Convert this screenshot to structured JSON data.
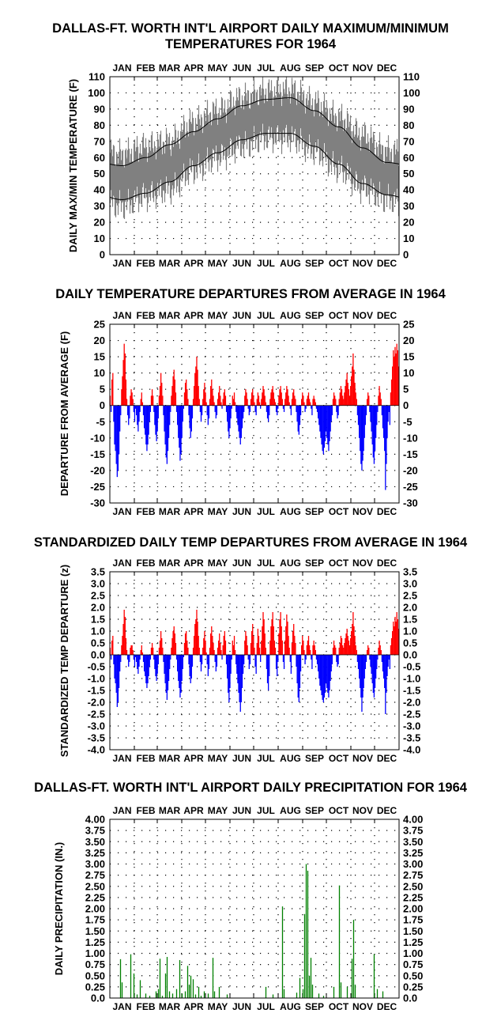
{
  "chart_data": [
    {
      "type": "line",
      "title": "DALLAS-FT. WORTH INT'L AIRPORT DAILY MAXIMUM/MINIMUM TEMPERATURES FOR 1964",
      "title_lines": [
        "DALLAS-FT. WORTH INT'L AIRPORT DAILY MAXIMUM/MINIMUM",
        "TEMPERATURES FOR 1964"
      ],
      "ylabel": "DAILY MAX/MIN TEMPERATURE (F)",
      "xlabel": "",
      "ylim": [
        0,
        110
      ],
      "yticks": [
        "0",
        "10",
        "20",
        "30",
        "40",
        "50",
        "60",
        "70",
        "80",
        "90",
        "100",
        "110"
      ],
      "months": [
        "JAN",
        "FEB",
        "MAR",
        "APR",
        "MAY",
        "JUN",
        "JUL",
        "AUG",
        "SEP",
        "OCT",
        "NOV",
        "DEC"
      ],
      "grid": true,
      "colors": {
        "daily_range": "#808080",
        "normals": "#000000"
      },
      "series": [
        {
          "name": "",
          "kind": "normal-max",
          "monthly_values": [
            55,
            60,
            68,
            76,
            84,
            92,
            96,
            97,
            89,
            79,
            66,
            57
          ]
        },
        {
          "name": "",
          "kind": "normal-min",
          "monthly_values": [
            34,
            38,
            45,
            55,
            63,
            71,
            75,
            75,
            67,
            56,
            44,
            37
          ]
        },
        {
          "name": "",
          "kind": "daily-max",
          "monthly_values": [
            58,
            63,
            66,
            78,
            85,
            93,
            97,
            98,
            90,
            81,
            70,
            60
          ]
        },
        {
          "name": "",
          "kind": "daily-min",
          "monthly_values": [
            34,
            40,
            44,
            56,
            64,
            71,
            76,
            76,
            68,
            57,
            45,
            38
          ]
        }
      ]
    },
    {
      "type": "bar",
      "title": "DAILY TEMPERATURE DEPARTURES FROM AVERAGE IN 1964",
      "ylabel": "DEPARTURE FROM AVERAGE (F)",
      "xlabel": "",
      "ylim": [
        -30,
        25
      ],
      "yticks": [
        "-30",
        "-25",
        "-20",
        "-15",
        "-10",
        "-5",
        "0",
        "5",
        "10",
        "15",
        "20",
        "25"
      ],
      "months": [
        "JAN",
        "FEB",
        "MAR",
        "APR",
        "MAY",
        "JUN",
        "JUL",
        "AUG",
        "SEP",
        "OCT",
        "NOV",
        "DEC"
      ],
      "grid": true,
      "colors": {
        "positive": "#ff0000",
        "negative": "#0000ff"
      },
      "values": [
        3,
        -2,
        8,
        10,
        -5,
        -12,
        -14,
        -18,
        -22,
        -20,
        -15,
        -8,
        -3,
        5,
        9,
        14,
        19,
        16,
        8,
        2,
        -3,
        -6,
        -4,
        3,
        5,
        4,
        2,
        -2,
        -5,
        -1,
        -3,
        -6,
        -8,
        -5,
        -2,
        2,
        4,
        1,
        -3,
        -7,
        -9,
        -12,
        -14,
        -12,
        -9,
        -5,
        -2,
        3,
        5,
        3,
        -2,
        -6,
        -9,
        -11,
        -8,
        -4,
        3,
        6,
        10,
        7,
        3,
        -3,
        -8,
        -12,
        -16,
        -18,
        -14,
        -10,
        -6,
        -2,
        3,
        6,
        9,
        11,
        8,
        4,
        -2,
        -6,
        -10,
        -13,
        -17,
        -15,
        -10,
        -5,
        -1,
        4,
        7,
        8,
        5,
        2,
        -3,
        -7,
        -10,
        -8,
        -4,
        2,
        6,
        10,
        12,
        15,
        11,
        6,
        2,
        -2,
        -5,
        -3,
        2,
        5,
        7,
        4,
        1,
        -3,
        -6,
        -4,
        2,
        6,
        8,
        5,
        3,
        1,
        -2,
        -4,
        -3,
        2,
        4,
        6,
        3,
        1,
        -1,
        2,
        4,
        5,
        3,
        -2,
        -5,
        -8,
        -10,
        -7,
        -4,
        -1,
        3,
        2,
        4,
        1,
        -2,
        -4,
        -6,
        -8,
        -10,
        -12,
        -10,
        -7,
        -4,
        -2,
        3,
        5,
        4,
        2,
        -1,
        -3,
        -2,
        2,
        4,
        5,
        3,
        1,
        -2,
        -3,
        2,
        4,
        3,
        1,
        -1,
        2,
        4,
        6,
        5,
        3,
        1,
        -2,
        -4,
        -5,
        -3,
        2,
        4,
        5,
        6,
        4,
        2,
        1,
        -2,
        -3,
        -1,
        3,
        5,
        6,
        4,
        2,
        -1,
        -2,
        2,
        4,
        6,
        5,
        3,
        1,
        -1,
        -3,
        2,
        4,
        5,
        3,
        2,
        -2,
        -5,
        -8,
        -9,
        -6,
        -3,
        2,
        4,
        3,
        1,
        -2,
        -1,
        2,
        3,
        4,
        2,
        1,
        -1,
        -3,
        2,
        3,
        2,
        1,
        -1,
        -2,
        -4,
        -6,
        -8,
        -10,
        -12,
        -14,
        -15,
        -13,
        -11,
        -8,
        -10,
        -12,
        -14,
        -11,
        -8,
        -5,
        -3,
        2,
        4,
        3,
        2,
        -2,
        -4,
        -3,
        2,
        4,
        6,
        5,
        3,
        2,
        4,
        6,
        8,
        10,
        7,
        5,
        3,
        6,
        9,
        12,
        16,
        11,
        7,
        4,
        2,
        -3,
        -6,
        -10,
        -14,
        -18,
        -20,
        -17,
        -14,
        -10,
        -6,
        -3,
        2,
        4,
        3,
        -2,
        -5,
        -8,
        -12,
        -16,
        -18,
        -14,
        -10,
        -6,
        -2,
        3,
        6,
        4,
        2,
        -3,
        -7,
        -10,
        -14,
        -26,
        -18,
        -10,
        -5,
        -2,
        -6,
        4,
        8,
        12,
        17,
        15,
        18,
        16,
        19,
        17,
        12
      ]
    },
    {
      "type": "bar",
      "title": "STANDARDIZED DAILY TEMP DEPARTURES FROM AVERAGE IN 1964",
      "ylabel": "STANDARDIZED TEMP DEPARTURE (z)",
      "xlabel": "",
      "ylim": [
        -4.0,
        3.5
      ],
      "yticks": [
        "-4.0",
        "-3.5",
        "-3.0",
        "-2.5",
        "-2.0",
        "-1.5",
        "-1.0",
        "-0.5",
        "0.0",
        "0.5",
        "1.0",
        "1.5",
        "2.0",
        "2.5",
        "3.0",
        "3.5"
      ],
      "months": [
        "JAN",
        "FEB",
        "MAR",
        "APR",
        "MAY",
        "JUN",
        "JUL",
        "AUG",
        "SEP",
        "OCT",
        "NOV",
        "DEC"
      ],
      "grid": true,
      "colors": {
        "positive": "#ff0000",
        "negative": "#0000ff"
      },
      "values": [
        0.3,
        -0.2,
        0.6,
        0.8,
        -0.4,
        -1.0,
        -1.2,
        -1.6,
        -2.2,
        -2.0,
        -1.4,
        -0.7,
        -0.3,
        0.4,
        0.8,
        1.3,
        1.9,
        1.6,
        0.7,
        0.2,
        -0.2,
        -0.5,
        -0.3,
        0.3,
        0.4,
        0.4,
        0.2,
        -0.2,
        -0.5,
        -0.1,
        -0.3,
        -0.6,
        -0.8,
        -0.5,
        -0.2,
        0.2,
        0.4,
        0.1,
        -0.3,
        -0.7,
        -0.9,
        -1.2,
        -1.4,
        -1.2,
        -0.9,
        -0.5,
        -0.2,
        0.3,
        0.5,
        0.3,
        -0.2,
        -0.6,
        -0.9,
        -1.1,
        -0.8,
        -0.4,
        0.3,
        0.6,
        1.0,
        0.7,
        0.3,
        -0.3,
        -0.8,
        -1.2,
        -1.6,
        -1.9,
        -1.5,
        -1.1,
        -0.6,
        -0.2,
        0.3,
        0.7,
        1.0,
        1.2,
        0.9,
        0.5,
        -0.2,
        -0.7,
        -1.1,
        -1.4,
        -1.8,
        -1.6,
        -1.1,
        -0.6,
        -0.1,
        0.5,
        0.9,
        1.0,
        0.6,
        0.3,
        -0.4,
        -0.9,
        -1.2,
        -1.0,
        -0.5,
        0.3,
        0.8,
        1.3,
        1.5,
        1.9,
        1.4,
        0.8,
        0.3,
        -0.3,
        -0.7,
        -0.4,
        0.3,
        0.7,
        1.0,
        0.6,
        0.1,
        -0.4,
        -0.9,
        -0.6,
        0.3,
        0.9,
        1.2,
        0.8,
        0.5,
        0.2,
        -0.3,
        -0.7,
        -0.5,
        0.3,
        0.6,
        0.9,
        0.5,
        0.2,
        -0.2,
        0.4,
        0.8,
        1.0,
        0.6,
        -0.4,
        -1.0,
        -1.6,
        -2.0,
        -1.4,
        -0.8,
        -0.2,
        0.6,
        0.4,
        0.8,
        0.2,
        -0.4,
        -0.8,
        -1.2,
        -1.6,
        -2.0,
        -2.4,
        -2.0,
        -1.4,
        -0.8,
        -0.4,
        0.6,
        1.0,
        0.8,
        0.4,
        -0.2,
        -0.6,
        -0.4,
        0.5,
        1.0,
        1.3,
        0.8,
        0.3,
        -0.5,
        -0.8,
        0.5,
        1.1,
        0.8,
        0.3,
        -0.3,
        0.6,
        1.2,
        1.8,
        1.5,
        0.9,
        0.3,
        -0.6,
        -1.2,
        -1.5,
        -0.9,
        0.6,
        1.2,
        1.5,
        1.8,
        1.2,
        0.6,
        0.3,
        -0.6,
        -0.9,
        -0.3,
        0.9,
        1.5,
        1.8,
        1.2,
        0.6,
        -0.3,
        -0.6,
        0.6,
        1.2,
        1.7,
        1.4,
        0.8,
        0.3,
        -0.3,
        -0.8,
        0.5,
        1.0,
        1.3,
        0.8,
        0.5,
        -0.5,
        -1.2,
        -1.8,
        -2.0,
        -1.4,
        -0.7,
        0.4,
        0.8,
        0.6,
        0.2,
        -0.4,
        -0.2,
        0.4,
        0.6,
        0.8,
        0.4,
        0.2,
        -0.2,
        -0.6,
        0.4,
        0.6,
        0.4,
        0.2,
        -0.2,
        -0.4,
        -0.7,
        -1.0,
        -1.3,
        -1.5,
        -1.7,
        -1.9,
        -2.0,
        -1.8,
        -1.6,
        -1.2,
        -1.4,
        -1.6,
        -1.8,
        -1.5,
        -1.1,
        -0.7,
        -0.4,
        0.3,
        0.6,
        0.4,
        0.3,
        -0.3,
        -0.5,
        -0.4,
        0.3,
        0.5,
        0.8,
        0.7,
        0.4,
        0.3,
        0.5,
        0.7,
        0.9,
        1.1,
        0.8,
        0.6,
        0.4,
        0.7,
        1.0,
        1.3,
        1.8,
        1.2,
        0.8,
        0.4,
        0.2,
        -0.3,
        -0.6,
        -1.0,
        -1.4,
        -1.8,
        -2.4,
        -1.8,
        -1.4,
        -1.0,
        -0.6,
        -0.3,
        0.2,
        0.4,
        0.3,
        -0.2,
        -0.5,
        -0.8,
        -1.2,
        -1.6,
        -1.8,
        -1.4,
        -1.0,
        -0.6,
        -0.2,
        0.3,
        0.6,
        0.4,
        0.2,
        -0.3,
        -0.7,
        -1.0,
        -1.4,
        -2.5,
        -1.6,
        -0.9,
        -0.5,
        -0.2,
        -0.6,
        0.4,
        0.7,
        1.0,
        1.4,
        1.2,
        1.6,
        1.4,
        1.8,
        1.5,
        1.1
      ]
    },
    {
      "type": "bar",
      "title": "DALLAS-FT. WORTH INT'L AIRPORT DAILY PRECIPITATION FOR 1964",
      "ylabel": "DAILY PRECIPITATION (IN.)",
      "xlabel": "",
      "ylim": [
        0.0,
        4.0
      ],
      "yticks": [
        "0.0",
        "0.25",
        "0.50",
        "0.75",
        "1.00",
        "1.25",
        "1.50",
        "1.75",
        "2.00",
        "2.25",
        "2.50",
        "2.75",
        "3.00",
        "3.25",
        "3.50",
        "3.75",
        "4.00"
      ],
      "months": [
        "JAN",
        "FEB",
        "MAR",
        "APR",
        "MAY",
        "JUN",
        "JUL",
        "AUG",
        "SEP",
        "OCT",
        "NOV",
        "DEC"
      ],
      "grid": true,
      "colors": {
        "bars": "#008000"
      },
      "events": [
        {
          "day": 13,
          "value": 0.87
        },
        {
          "day": 15,
          "value": 0.35
        },
        {
          "day": 26,
          "value": 0.98
        },
        {
          "day": 30,
          "value": 0.55
        },
        {
          "day": 34,
          "value": 0.08
        },
        {
          "day": 38,
          "value": 0.4
        },
        {
          "day": 45,
          "value": 0.1
        },
        {
          "day": 50,
          "value": 0.05
        },
        {
          "day": 58,
          "value": 0.15
        },
        {
          "day": 61,
          "value": 0.2
        },
        {
          "day": 63,
          "value": 0.88
        },
        {
          "day": 66,
          "value": 0.05
        },
        {
          "day": 70,
          "value": 0.55
        },
        {
          "day": 72,
          "value": 0.92
        },
        {
          "day": 75,
          "value": 0.15
        },
        {
          "day": 79,
          "value": 0.1
        },
        {
          "day": 84,
          "value": 0.2
        },
        {
          "day": 88,
          "value": 0.85
        },
        {
          "day": 91,
          "value": 0.1
        },
        {
          "day": 95,
          "value": 0.15
        },
        {
          "day": 98,
          "value": 0.72
        },
        {
          "day": 100,
          "value": 0.3
        },
        {
          "day": 102,
          "value": 0.5
        },
        {
          "day": 105,
          "value": 0.42
        },
        {
          "day": 108,
          "value": 0.08
        },
        {
          "day": 112,
          "value": 0.25
        },
        {
          "day": 115,
          "value": 0.05
        },
        {
          "day": 119,
          "value": 0.15
        },
        {
          "day": 124,
          "value": 0.1
        },
        {
          "day": 130,
          "value": 0.9
        },
        {
          "day": 132,
          "value": 0.15
        },
        {
          "day": 138,
          "value": 0.25
        },
        {
          "day": 148,
          "value": 0.08
        },
        {
          "day": 197,
          "value": 0.25
        },
        {
          "day": 206,
          "value": 0.08
        },
        {
          "day": 218,
          "value": 2.05
        },
        {
          "day": 220,
          "value": 0.2
        },
        {
          "day": 236,
          "value": 0.12
        },
        {
          "day": 240,
          "value": 0.45
        },
        {
          "day": 244,
          "value": 0.2
        },
        {
          "day": 246,
          "value": 1.88
        },
        {
          "day": 248,
          "value": 3.0
        },
        {
          "day": 250,
          "value": 2.85
        },
        {
          "day": 252,
          "value": 0.5
        },
        {
          "day": 254,
          "value": 0.9
        },
        {
          "day": 256,
          "value": 0.3
        },
        {
          "day": 264,
          "value": 0.1
        },
        {
          "day": 270,
          "value": 0.05
        },
        {
          "day": 283,
          "value": 0.25
        },
        {
          "day": 290,
          "value": 2.52
        },
        {
          "day": 292,
          "value": 0.35
        },
        {
          "day": 300,
          "value": 0.25
        },
        {
          "day": 306,
          "value": 0.88
        },
        {
          "day": 308,
          "value": 1.75
        },
        {
          "day": 310,
          "value": 0.3
        },
        {
          "day": 334,
          "value": 0.98
        },
        {
          "day": 338,
          "value": 0.2
        },
        {
          "day": 345,
          "value": 0.15
        }
      ]
    }
  ]
}
